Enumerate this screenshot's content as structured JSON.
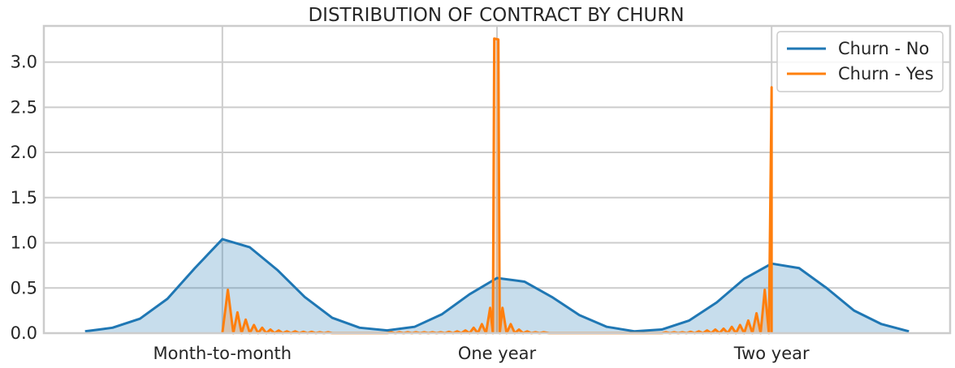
{
  "chart_data": {
    "type": "area",
    "title": "DISTRIBUTION OF CONTRACT BY CHURN",
    "xlabel": "",
    "ylabel": "",
    "categories": [
      "Month-to-month",
      "One year",
      "Two year"
    ],
    "x_range": [
      -0.65,
      2.65
    ],
    "ylim": [
      0,
      3.4
    ],
    "yticks": [
      0.0,
      0.5,
      1.0,
      1.5,
      2.0,
      2.5,
      3.0
    ],
    "ytick_labels": [
      "0.0",
      "0.5",
      "1.0",
      "1.5",
      "2.0",
      "2.5",
      "3.0"
    ],
    "grid": true,
    "legend_position": "top-right",
    "series": [
      {
        "name": "Churn - No",
        "color": "#1f77b4",
        "fill": true,
        "points": [
          [
            -0.5,
            0.02
          ],
          [
            -0.4,
            0.06
          ],
          [
            -0.3,
            0.16
          ],
          [
            -0.2,
            0.38
          ],
          [
            -0.1,
            0.72
          ],
          [
            0.0,
            1.04
          ],
          [
            0.1,
            0.95
          ],
          [
            0.2,
            0.7
          ],
          [
            0.3,
            0.4
          ],
          [
            0.4,
            0.17
          ],
          [
            0.5,
            0.06
          ],
          [
            0.6,
            0.03
          ],
          [
            0.7,
            0.07
          ],
          [
            0.8,
            0.21
          ],
          [
            0.9,
            0.43
          ],
          [
            1.0,
            0.61
          ],
          [
            1.1,
            0.57
          ],
          [
            1.2,
            0.4
          ],
          [
            1.3,
            0.2
          ],
          [
            1.4,
            0.07
          ],
          [
            1.5,
            0.02
          ],
          [
            1.6,
            0.04
          ],
          [
            1.7,
            0.14
          ],
          [
            1.8,
            0.34
          ],
          [
            1.9,
            0.6
          ],
          [
            2.0,
            0.77
          ],
          [
            2.1,
            0.72
          ],
          [
            2.2,
            0.5
          ],
          [
            2.3,
            0.25
          ],
          [
            2.4,
            0.1
          ],
          [
            2.5,
            0.02
          ]
        ]
      },
      {
        "name": "Churn - Yes",
        "color": "#ff7f0e",
        "fill": true,
        "points": [
          [
            0.0,
            0.0
          ],
          [
            0.02,
            0.48
          ],
          [
            0.04,
            0.0
          ],
          [
            0.055,
            0.23
          ],
          [
            0.07,
            0.0
          ],
          [
            0.085,
            0.15
          ],
          [
            0.1,
            0.0
          ],
          [
            0.115,
            0.09
          ],
          [
            0.13,
            0.0
          ],
          [
            0.145,
            0.06
          ],
          [
            0.16,
            0.0
          ],
          [
            0.175,
            0.04
          ],
          [
            0.19,
            0.0
          ],
          [
            0.205,
            0.03
          ],
          [
            0.22,
            0.0
          ],
          [
            0.235,
            0.02
          ],
          [
            0.25,
            0.0
          ],
          [
            0.265,
            0.02
          ],
          [
            0.28,
            0.0
          ],
          [
            0.295,
            0.015
          ],
          [
            0.31,
            0.0
          ],
          [
            0.325,
            0.015
          ],
          [
            0.34,
            0.0
          ],
          [
            0.355,
            0.01
          ],
          [
            0.37,
            0.0
          ],
          [
            0.385,
            0.01
          ],
          [
            0.4,
            0.0
          ],
          [
            0.6,
            0.0
          ],
          [
            0.615,
            0.01
          ],
          [
            0.63,
            0.0
          ],
          [
            0.645,
            0.01
          ],
          [
            0.66,
            0.0
          ],
          [
            0.675,
            0.01
          ],
          [
            0.69,
            0.0
          ],
          [
            0.705,
            0.01
          ],
          [
            0.72,
            0.0
          ],
          [
            0.735,
            0.01
          ],
          [
            0.75,
            0.0
          ],
          [
            0.765,
            0.01
          ],
          [
            0.78,
            0.0
          ],
          [
            0.795,
            0.01
          ],
          [
            0.81,
            0.0
          ],
          [
            0.825,
            0.015
          ],
          [
            0.84,
            0.0
          ],
          [
            0.855,
            0.02
          ],
          [
            0.87,
            0.0
          ],
          [
            0.885,
            0.03
          ],
          [
            0.9,
            0.0
          ],
          [
            0.915,
            0.06
          ],
          [
            0.93,
            0.0
          ],
          [
            0.945,
            0.1
          ],
          [
            0.96,
            0.0
          ],
          [
            0.975,
            0.28
          ],
          [
            0.985,
            0.0
          ],
          [
            0.99,
            3.26
          ],
          [
            1.005,
            3.25
          ],
          [
            1.01,
            0.0
          ],
          [
            1.02,
            0.28
          ],
          [
            1.035,
            0.0
          ],
          [
            1.05,
            0.1
          ],
          [
            1.065,
            0.0
          ],
          [
            1.08,
            0.04
          ],
          [
            1.095,
            0.0
          ],
          [
            1.11,
            0.02
          ],
          [
            1.125,
            0.0
          ],
          [
            1.14,
            0.01
          ],
          [
            1.155,
            0.0
          ],
          [
            1.17,
            0.01
          ],
          [
            1.19,
            0.0
          ],
          [
            1.6,
            0.0
          ],
          [
            1.615,
            0.01
          ],
          [
            1.63,
            0.0
          ],
          [
            1.645,
            0.01
          ],
          [
            1.66,
            0.0
          ],
          [
            1.675,
            0.01
          ],
          [
            1.69,
            0.0
          ],
          [
            1.705,
            0.015
          ],
          [
            1.72,
            0.0
          ],
          [
            1.735,
            0.02
          ],
          [
            1.75,
            0.0
          ],
          [
            1.765,
            0.03
          ],
          [
            1.78,
            0.0
          ],
          [
            1.795,
            0.04
          ],
          [
            1.81,
            0.0
          ],
          [
            1.825,
            0.05
          ],
          [
            1.84,
            0.0
          ],
          [
            1.855,
            0.07
          ],
          [
            1.87,
            0.0
          ],
          [
            1.885,
            0.09
          ],
          [
            1.9,
            0.0
          ],
          [
            1.915,
            0.14
          ],
          [
            1.93,
            0.0
          ],
          [
            1.945,
            0.22
          ],
          [
            1.96,
            0.0
          ],
          [
            1.975,
            0.48
          ],
          [
            1.99,
            0.0
          ],
          [
            2.0,
            2.72
          ],
          [
            2.0,
            0.0
          ]
        ]
      }
    ]
  }
}
